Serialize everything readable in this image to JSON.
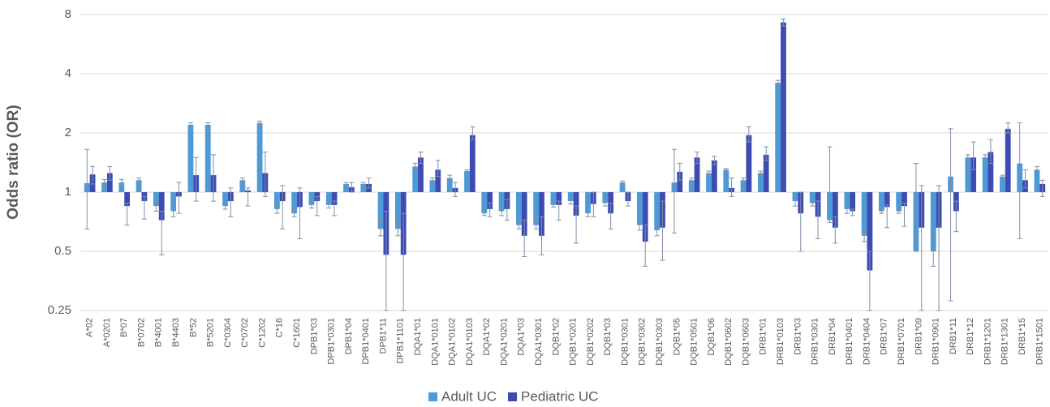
{
  "chart_data": {
    "type": "bar",
    "y_label": "Odds ratio (OR)",
    "log_scale": true,
    "bar_base": 1,
    "grid": true,
    "legend": "bottom",
    "ylim": [
      0.25,
      8
    ],
    "yticks": [
      0.25,
      0.5,
      1,
      2,
      4,
      8
    ],
    "categories": [
      "A*02",
      "A*0201",
      "B*07",
      "B*0702",
      "B*4001",
      "B*4403",
      "B*52",
      "B*5201",
      "C*0304",
      "C*0702",
      "C*1202",
      "C*16",
      "C*1601",
      "DPB1*03",
      "DPB1*0301",
      "DPB1*04",
      "DPB1*0401",
      "DPB1*11",
      "DPB1*1101",
      "DQA1*01",
      "DQA1*0101",
      "DQA1*0102",
      "DQA1*0103",
      "DQA1*02",
      "DQA1*0201",
      "DQA1*03",
      "DQA1*0301",
      "DQB1*02",
      "DQB1*0201",
      "DQB1*0202",
      "DQB1*03",
      "DQB1*0301",
      "DQB1*0302",
      "DQB1*0303",
      "DQB1*05",
      "DQB1*0501",
      "DQB1*06",
      "DQB1*0602",
      "DQB1*0603",
      "DRB1*01",
      "DRB1*0103",
      "DRB1*03",
      "DRB1*0301",
      "DRB1*04",
      "DRB1*0401",
      "DRB1*0404",
      "DRB1*07",
      "DRB1*0701",
      "DRB1*09",
      "DRB1*0901",
      "DRB1*11",
      "DRB1*12",
      "DRB1*1201",
      "DRB1*1301",
      "DRB1*15",
      "DRB1*1501"
    ],
    "series": [
      {
        "name": "Adult UC",
        "color": "#4e9ad6",
        "values": [
          1.11,
          1.12,
          1.12,
          1.15,
          0.85,
          0.8,
          2.2,
          2.2,
          0.85,
          1.15,
          2.25,
          0.82,
          0.78,
          0.86,
          0.86,
          1.1,
          1.1,
          0.65,
          0.65,
          1.35,
          1.15,
          1.18,
          1.28,
          0.78,
          0.8,
          0.68,
          0.68,
          0.86,
          0.9,
          0.78,
          0.88,
          1.12,
          0.68,
          0.64,
          1.12,
          1.15,
          1.25,
          1.3,
          1.15,
          1.25,
          3.6,
          0.9,
          0.88,
          0.72,
          0.82,
          0.6,
          0.8,
          0.8,
          0.5,
          0.5,
          1.2,
          1.5,
          1.5,
          1.2,
          1.4,
          1.3
        ],
        "ci_low": [
          0.65,
          1.08,
          1.08,
          1.1,
          0.8,
          0.75,
          2.1,
          2.1,
          0.82,
          1.1,
          2.15,
          0.78,
          0.75,
          0.83,
          0.83,
          1.06,
          1.06,
          0.6,
          0.6,
          1.3,
          1.1,
          1.15,
          1.25,
          0.76,
          0.76,
          0.65,
          0.65,
          0.84,
          0.87,
          0.75,
          0.85,
          1.1,
          0.64,
          0.6,
          0.62,
          1.12,
          1.22,
          1.25,
          1.1,
          1.22,
          3.5,
          0.85,
          0.85,
          0.7,
          0.78,
          0.56,
          0.78,
          0.78,
          0.5,
          0.42,
          0.28,
          1.45,
          1.45,
          1.18,
          0.58,
          1.28
        ],
        "ci_high": [
          1.65,
          1.16,
          1.16,
          1.18,
          0.9,
          0.85,
          2.25,
          2.25,
          0.88,
          1.18,
          2.3,
          0.86,
          0.82,
          0.88,
          0.88,
          1.12,
          1.12,
          0.7,
          0.7,
          1.4,
          1.18,
          1.22,
          1.3,
          0.8,
          0.82,
          0.7,
          0.7,
          0.88,
          0.92,
          0.8,
          0.9,
          1.14,
          0.72,
          0.68,
          1.65,
          1.18,
          1.28,
          1.32,
          1.18,
          1.28,
          3.7,
          0.92,
          0.9,
          1.7,
          0.85,
          0.64,
          0.82,
          0.82,
          1.4,
          0.6,
          2.1,
          1.55,
          1.55,
          1.22,
          2.25,
          1.35
        ]
      },
      {
        "name": "Pediatric UC",
        "color": "#3d4cb3",
        "values": [
          1.23,
          1.25,
          0.85,
          0.9,
          0.72,
          0.95,
          1.22,
          1.22,
          0.9,
          1.02,
          1.25,
          0.9,
          0.84,
          0.9,
          0.86,
          1.06,
          1.1,
          0.48,
          0.48,
          1.5,
          1.3,
          1.05,
          1.95,
          0.82,
          0.82,
          0.6,
          0.6,
          0.86,
          0.76,
          0.87,
          0.78,
          0.9,
          0.56,
          0.66,
          1.27,
          1.5,
          1.45,
          1.05,
          1.95,
          1.55,
          7.3,
          0.78,
          0.75,
          0.66,
          0.8,
          0.4,
          0.84,
          0.85,
          0.66,
          0.66,
          0.8,
          1.5,
          1.6,
          2.1,
          1.15,
          1.1
        ],
        "ci_low": [
          1.1,
          1.15,
          0.68,
          0.73,
          0.48,
          0.78,
          0.9,
          0.9,
          0.75,
          0.85,
          0.95,
          0.65,
          0.58,
          0.76,
          0.76,
          1.0,
          1.05,
          0.25,
          0.25,
          1.4,
          1.2,
          0.95,
          1.85,
          0.75,
          0.72,
          0.47,
          0.48,
          0.72,
          0.55,
          0.75,
          0.65,
          0.85,
          0.42,
          0.45,
          1.15,
          1.4,
          1.38,
          0.95,
          1.8,
          1.45,
          7.0,
          0.5,
          0.58,
          0.55,
          0.76,
          0.25,
          0.66,
          0.67,
          0.25,
          0.25,
          0.63,
          1.3,
          1.4,
          2.0,
          1.05,
          0.95
        ],
        "ci_high": [
          1.35,
          1.35,
          0.88,
          0.95,
          0.8,
          1.12,
          1.5,
          1.55,
          1.05,
          1.05,
          1.6,
          1.08,
          1.05,
          0.95,
          0.9,
          1.12,
          1.18,
          0.8,
          0.78,
          1.6,
          1.45,
          1.12,
          2.15,
          0.88,
          0.92,
          0.72,
          0.75,
          0.9,
          0.85,
          1.0,
          0.88,
          1.0,
          0.68,
          0.9,
          1.4,
          1.6,
          1.52,
          1.18,
          2.15,
          1.7,
          7.6,
          1.0,
          0.9,
          0.75,
          0.82,
          0.5,
          0.86,
          0.88,
          1.08,
          1.08,
          0.9,
          1.8,
          1.85,
          2.25,
          1.3,
          1.15
        ]
      }
    ]
  }
}
